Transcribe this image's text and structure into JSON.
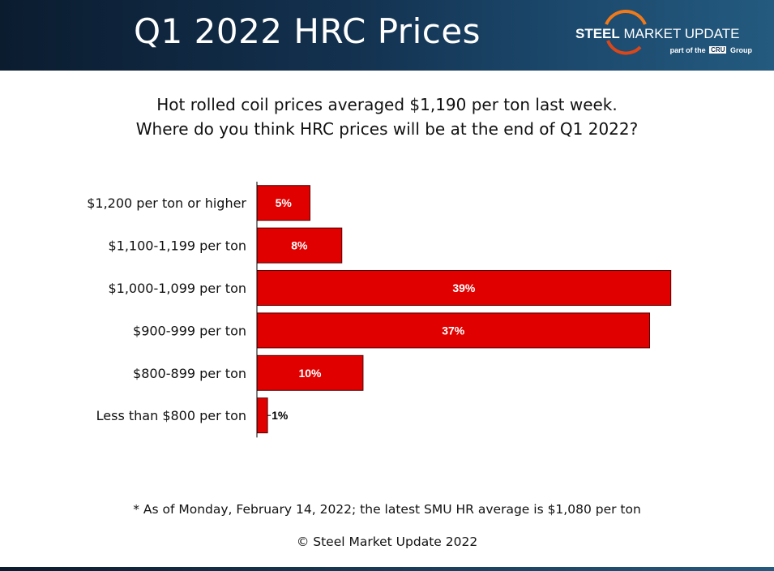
{
  "header": {
    "title": "Q1 2022 HRC Prices",
    "logo": {
      "brand_bold": "STEEL",
      "brand_rest": " MARKET UPDATE",
      "sub_prefix": "part of the",
      "sub_badge": "CRU",
      "sub_suffix": "Group"
    }
  },
  "subtitle": {
    "line1": "Hot rolled coil prices averaged $1,190 per ton last week.",
    "line2": "Where do you think HRC prices will be at the end of Q1 2022?"
  },
  "chart_data": {
    "type": "bar",
    "orientation": "horizontal",
    "categories": [
      "$1,200 per ton or higher",
      "$1,100-1,199 per ton",
      "$1,000-1,099 per ton",
      "$900-999 per ton",
      "$800-899 per ton",
      "Less than $800 per ton"
    ],
    "values": [
      5,
      8,
      39,
      37,
      10,
      1
    ],
    "data_labels": [
      "5%",
      "8%",
      "39%",
      "37%",
      "10%",
      "1%"
    ],
    "unit": "%",
    "xlim": [
      0,
      40
    ],
    "grid": false,
    "legend": "none",
    "colors": {
      "bar": "#e00000",
      "bar_border": "#5a0000",
      "label_inside": "#ffffff",
      "label_outside": "#000000"
    }
  },
  "footer": {
    "footnote": "* As of Monday, February 14, 2022; the latest SMU HR average is $1,080 per ton",
    "copyright": "© Steel Market Update 2022"
  },
  "colors": {
    "header_dark": "#0b1c2f",
    "header_light": "#245a7f",
    "logo_accent": "#f07a1a"
  }
}
